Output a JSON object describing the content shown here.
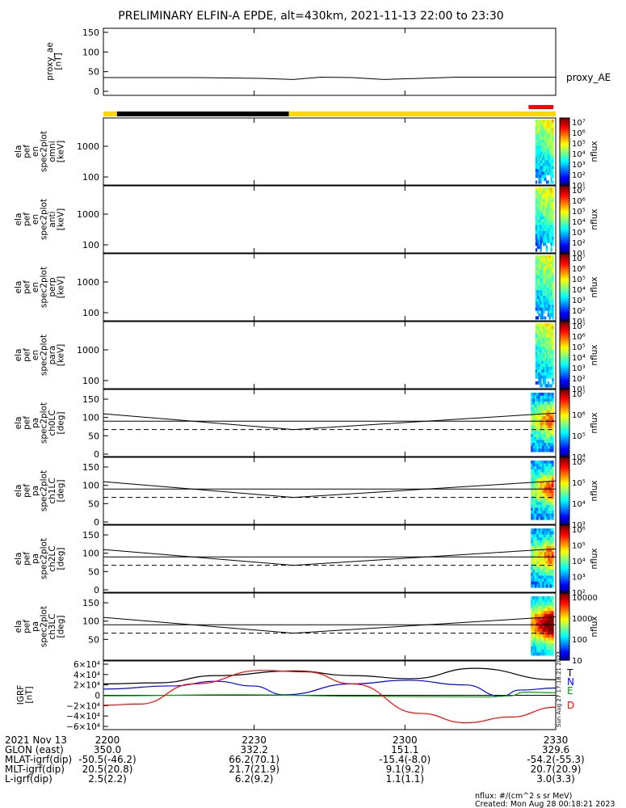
{
  "title": "PRELIMINARY ELFIN-A EPDE, alt=430km, 2021-11-13 22:00 to 23:30",
  "time_ticks": [
    "2200",
    "2230",
    "2300",
    "2330"
  ],
  "chart_data": [
    {
      "type": "line",
      "panel": "proxy_ae",
      "ylabel": [
        "proxy_ae",
        "[nT]"
      ],
      "series_label": "proxy_AE",
      "ylim": [
        0,
        150
      ],
      "yticks": [
        "0",
        "50",
        "100",
        "150"
      ],
      "x": [
        0,
        0.2,
        0.35,
        0.42,
        0.48,
        0.55,
        0.62,
        0.7,
        0.78,
        1.0
      ],
      "values": [
        35,
        35,
        33,
        30,
        36,
        35,
        30,
        33,
        36,
        36
      ]
    },
    {
      "type": "table",
      "panel": "status-bar",
      "segments": [
        {
          "from": 0,
          "to": 0.03,
          "color": "#ffd700"
        },
        {
          "from": 0.03,
          "to": 0.41,
          "color": "#000000"
        },
        {
          "from": 0.41,
          "to": 1.0,
          "color": "#ffd700"
        }
      ],
      "extra": {
        "from": 0.94,
        "to": 0.995,
        "color": "#ff0000"
      }
    },
    {
      "type": "heatmap",
      "panel": "omni",
      "ylabel": [
        "ela",
        "pef",
        "en",
        "spec2plot",
        "omni",
        "[keV]"
      ],
      "yticks": [
        "1000",
        "100"
      ],
      "cbar_ticks": [
        "10⁷",
        "10⁶",
        "10⁵",
        "10⁴",
        "10³",
        "10²",
        "10¹"
      ],
      "cbar_label": "nflux",
      "data_window": [
        0.955,
        0.995
      ]
    },
    {
      "type": "heatmap",
      "panel": "anti",
      "ylabel": [
        "ela",
        "pef",
        "en",
        "spec2plot",
        "anti",
        "[keV]"
      ],
      "yticks": [
        "1000",
        "100"
      ],
      "cbar_ticks": [
        "10⁷",
        "10⁶",
        "10⁵",
        "10⁴",
        "10³",
        "10²",
        "10¹"
      ],
      "cbar_label": "nflux",
      "data_window": [
        0.955,
        0.995
      ]
    },
    {
      "type": "heatmap",
      "panel": "perp",
      "ylabel": [
        "ela",
        "pef",
        "en",
        "spec2plot",
        "perp",
        "[keV]"
      ],
      "yticks": [
        "1000",
        "100"
      ],
      "cbar_ticks": [
        "10⁷",
        "10⁶",
        "10⁵",
        "10⁴",
        "10³",
        "10²",
        "10¹"
      ],
      "cbar_label": "nflux",
      "data_window": [
        0.955,
        0.995
      ]
    },
    {
      "type": "heatmap",
      "panel": "para",
      "ylabel": [
        "ela",
        "pef",
        "en",
        "spec2plot",
        "para",
        "[keV]"
      ],
      "yticks": [
        "1000",
        "100"
      ],
      "cbar_ticks": [
        "10⁷",
        "10⁶",
        "10⁵",
        "10⁴",
        "10³",
        "10²",
        "10¹"
      ],
      "cbar_label": "nflux",
      "data_window": [
        0.955,
        0.995
      ]
    },
    {
      "type": "heatmap",
      "panel": "ch0LC",
      "ylabel": [
        "ela",
        "pef",
        "pa",
        "spec2plot",
        "ch0LC",
        "[deg]"
      ],
      "yticks": [
        "150",
        "100",
        "50",
        "0"
      ],
      "ylim": [
        0,
        180
      ],
      "cbar_ticks": [
        "10⁷",
        "10⁶",
        "10⁵",
        "10⁴"
      ],
      "cbar_label": "nflux",
      "loss_cone_x": [
        0,
        0.42,
        1
      ],
      "loss_cone_y": [
        110,
        67,
        112
      ],
      "hline_solid": 90,
      "hline_dashed": 67,
      "data_window": [
        0.945,
        0.995
      ]
    },
    {
      "type": "heatmap",
      "panel": "ch1LC",
      "ylabel": [
        "ela",
        "pef",
        "pa",
        "spec2plot",
        "ch1LC",
        "[deg]"
      ],
      "yticks": [
        "150",
        "100",
        "50",
        "0"
      ],
      "ylim": [
        0,
        180
      ],
      "cbar_ticks": [
        "10⁶",
        "10⁵",
        "10⁴",
        "10³"
      ],
      "cbar_label": "nflux",
      "loss_cone_x": [
        0,
        0.42,
        1
      ],
      "loss_cone_y": [
        110,
        67,
        112
      ],
      "hline_solid": 90,
      "hline_dashed": 67,
      "data_window": [
        0.945,
        0.995
      ]
    },
    {
      "type": "heatmap",
      "panel": "ch2LC",
      "ylabel": [
        "ela",
        "pef",
        "pa",
        "spec2plot",
        "ch2LC",
        "[deg]"
      ],
      "yticks": [
        "150",
        "100",
        "50",
        "0"
      ],
      "ylim": [
        0,
        180
      ],
      "cbar_ticks": [
        "10⁶",
        "10⁵",
        "10⁴",
        "10³",
        "10²"
      ],
      "cbar_label": "nflux",
      "loss_cone_x": [
        0,
        0.42,
        1
      ],
      "loss_cone_y": [
        110,
        67,
        112
      ],
      "hline_solid": 90,
      "hline_dashed": 67,
      "data_window": [
        0.945,
        0.995
      ]
    },
    {
      "type": "heatmap",
      "panel": "ch3LC",
      "ylabel": [
        "ela",
        "pef",
        "pa",
        "spec2plot",
        "ch3LC",
        "[deg]"
      ],
      "yticks": [
        "150",
        "100",
        "50"
      ],
      "ylim": [
        0,
        180
      ],
      "cbar_ticks": [
        "10000",
        "1000",
        "100",
        "10"
      ],
      "cbar_label": "nflux",
      "loss_cone_x": [
        0,
        0.42,
        1
      ],
      "loss_cone_y": [
        110,
        67,
        112
      ],
      "hline_solid": 90,
      "hline_dashed": 67,
      "data_window": [
        0.945,
        0.995
      ]
    },
    {
      "type": "line",
      "panel": "igrf",
      "ylabel": [
        "IGRF",
        "[nT]"
      ],
      "ylim": [
        -60000,
        60000
      ],
      "yticks": [
        "6×10⁴",
        "4×10⁴",
        "2×10⁴",
        "0",
        "−2×10⁴",
        "−4×10⁴",
        "−6×10⁴"
      ],
      "series": [
        {
          "name": "T",
          "color": "#000000",
          "x": [
            0,
            0.12,
            0.25,
            0.42,
            0.55,
            0.68,
            0.82,
            1.0
          ],
          "values": [
            22000,
            24000,
            38000,
            47000,
            38000,
            32000,
            52000,
            30000
          ]
        },
        {
          "name": "N",
          "color": "#0000ff",
          "x": [
            0,
            0.15,
            0.25,
            0.33,
            0.4,
            0.55,
            0.67,
            0.8,
            0.88,
            0.92,
            1.0
          ],
          "values": [
            12000,
            18000,
            27000,
            18000,
            1000,
            22000,
            29000,
            20000,
            -2000,
            10000,
            14000
          ]
        },
        {
          "name": "E",
          "color": "#00a000",
          "x": [
            0,
            0.3,
            0.6,
            0.85,
            0.9,
            0.93,
            1.0
          ],
          "values": [
            -1000,
            1000,
            -2000,
            -3000,
            -1000,
            6000,
            5000
          ]
        },
        {
          "name": "D",
          "color": "#ff0000",
          "x": [
            0,
            0.08,
            0.2,
            0.35,
            0.45,
            0.55,
            0.7,
            0.8,
            0.9,
            1.0
          ],
          "values": [
            -19000,
            -17000,
            22000,
            48000,
            45000,
            22000,
            -35000,
            -53000,
            -42000,
            -23000
          ]
        }
      ]
    }
  ],
  "ephemeris": {
    "rows": [
      {
        "label": "2021 Nov 13",
        "values": [
          "2200",
          "2230",
          "2300",
          "2330"
        ]
      },
      {
        "label": "GLON (east)",
        "values": [
          "350.0",
          "332.2",
          "151.1",
          "329.6"
        ]
      },
      {
        "label": "MLAT-igrf(dip)",
        "values": [
          "-50.5(-46.2)",
          "66.2(70.1)",
          "-15.4(-8.0)",
          "-54.2(-55.3)"
        ]
      },
      {
        "label": "MLT-igrf(dip)",
        "values": [
          "20.5(20.8)",
          "21.7(21.9)",
          "9.1(9.2)",
          "20.7(20.9)"
        ]
      },
      {
        "label": "L-igrf(dip)",
        "values": [
          "2.5(2.2)",
          "6.2(9.2)",
          "1.1(1.1)",
          "3.0(3.3)"
        ]
      }
    ]
  },
  "footer": {
    "units": "nflux: #/(cm^2 s sr MeV)",
    "created": "Created: Mon Aug 28 00:18:21 2023"
  },
  "side_stamp": "Sun Aug 27 17:18:21 2023",
  "colors": {
    "axis": "#000000",
    "bar_yellow": "#ffd700",
    "bar_black": "#000000",
    "bar_red": "#ff0000"
  }
}
